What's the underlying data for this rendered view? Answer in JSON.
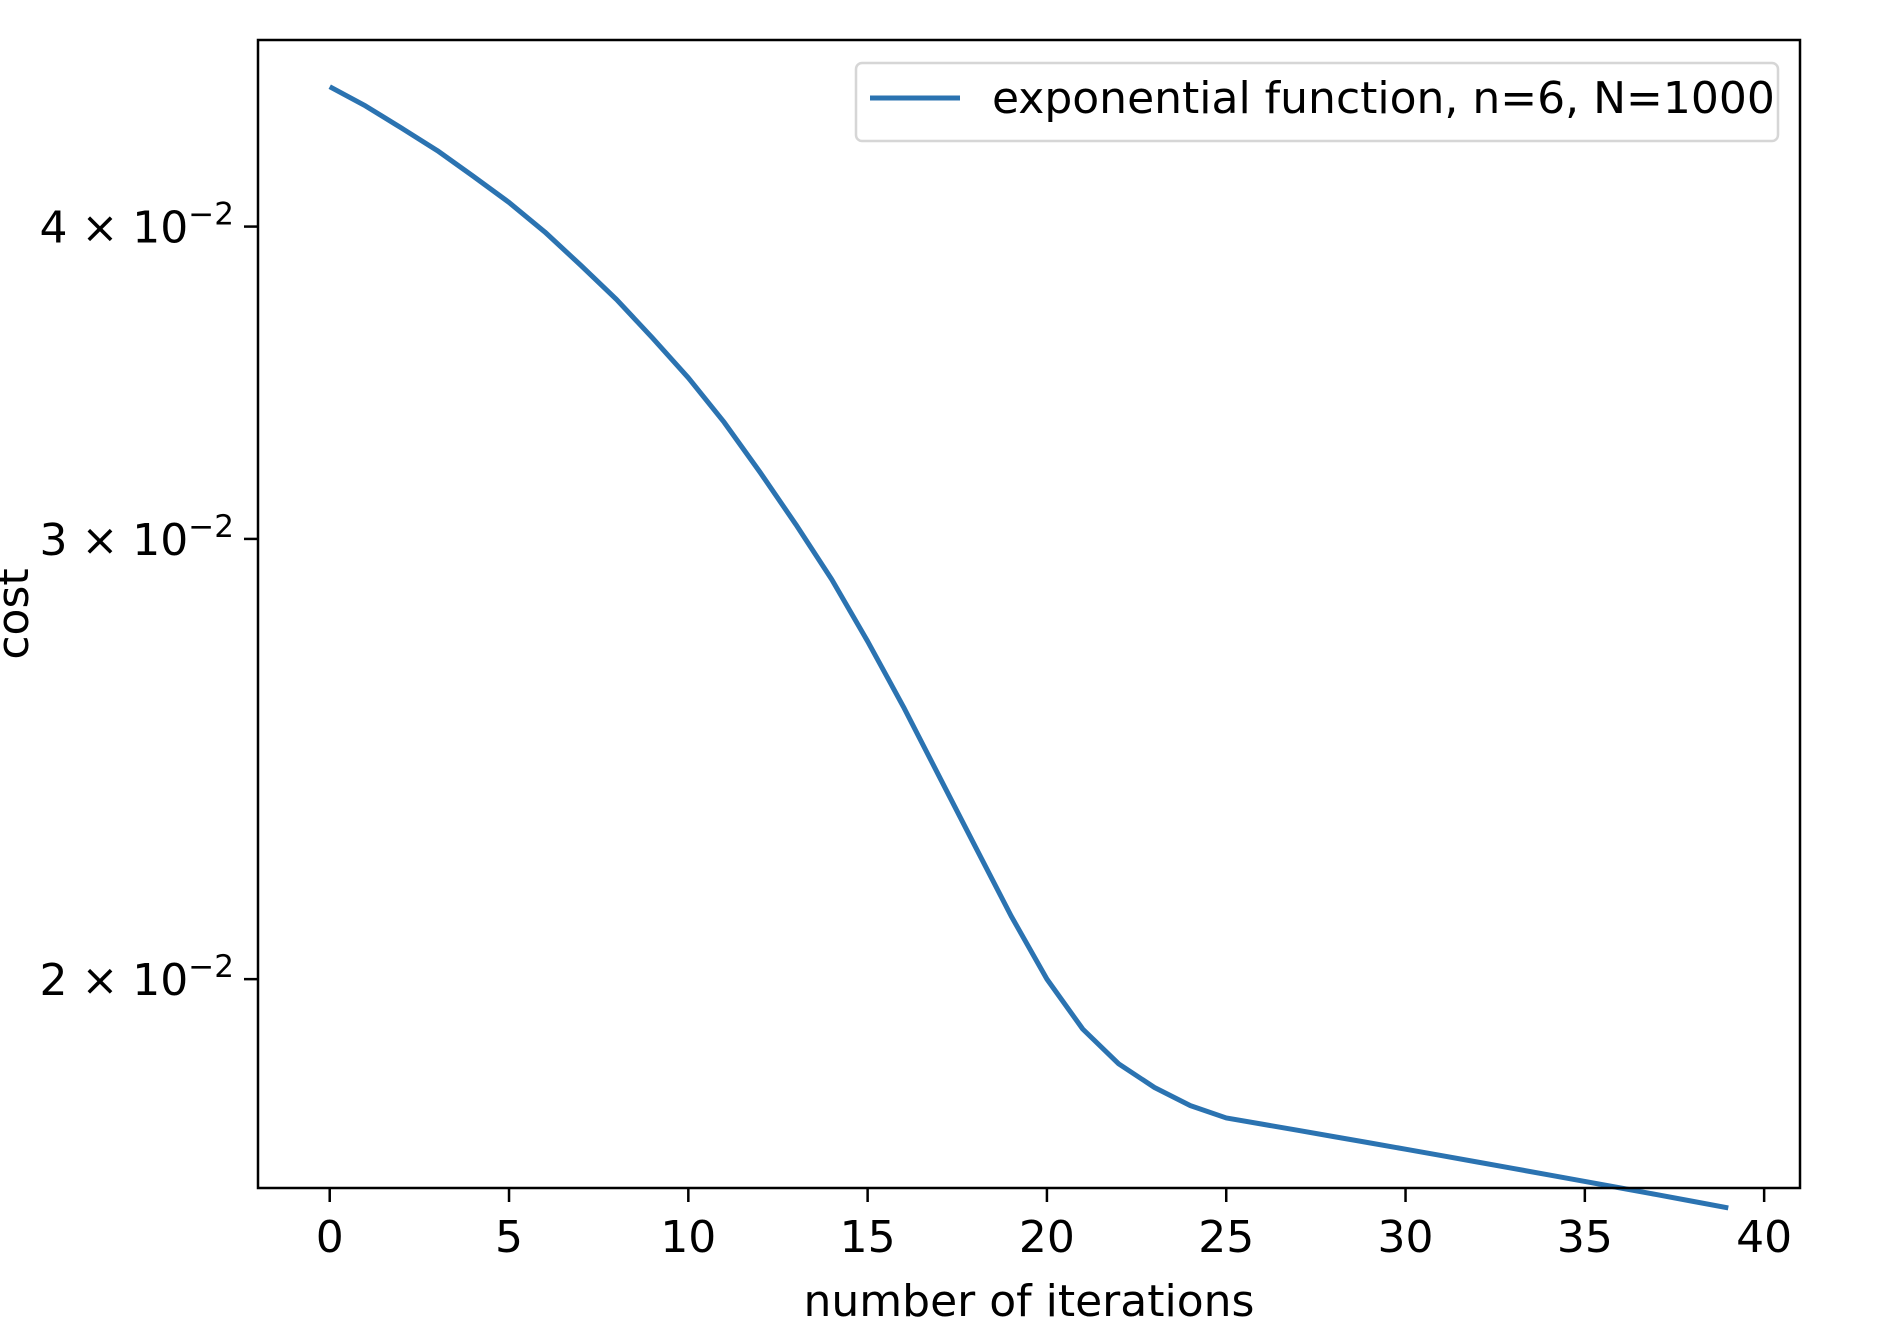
{
  "chart_data": {
    "type": "line",
    "title": "",
    "xlabel": "number of iterations",
    "ylabel": "cost",
    "xlim": [
      -2,
      41
    ],
    "ylim": [
      0.0165,
      0.0475
    ],
    "yscale": "log",
    "grid": false,
    "legend_position": "top-right",
    "x_ticks": [
      0,
      5,
      10,
      15,
      20,
      25,
      30,
      35,
      40
    ],
    "x_tick_labels": [
      "0",
      "5",
      "10",
      "15",
      "20",
      "25",
      "30",
      "35",
      "40"
    ],
    "y_ticks": [
      {
        "value": 0.04,
        "mantissa": "4",
        "exponent": "−2"
      },
      {
        "value": 0.03,
        "mantissa": "3",
        "exponent": "−2"
      },
      {
        "value": 0.02,
        "mantissa": "2",
        "exponent": "−2"
      }
    ],
    "y_tick_base": "× 10",
    "series": [
      {
        "name": "exponential function, n=6, N=1000",
        "color": "#2b73b1",
        "x": [
          0,
          1,
          2,
          3,
          4,
          5,
          6,
          7,
          8,
          9,
          10,
          11,
          12,
          13,
          14,
          15,
          16,
          17,
          18,
          19,
          20,
          21,
          22,
          23,
          24,
          25,
          26,
          27,
          28,
          29,
          30,
          31,
          32,
          33,
          34,
          35,
          36,
          37,
          38,
          39
        ],
        "y": [
          0.0455,
          0.0447,
          0.0438,
          0.0429,
          0.0419,
          0.0409,
          0.0398,
          0.0386,
          0.0374,
          0.0361,
          0.0348,
          0.0334,
          0.0319,
          0.0304,
          0.0289,
          0.0273,
          0.0257,
          0.0241,
          0.0226,
          0.0212,
          0.02,
          0.0191,
          0.0185,
          0.0181,
          0.0178,
          0.0176,
          0.0175,
          0.0174,
          0.0173,
          0.0172,
          0.0171,
          0.017,
          0.0169,
          0.0168,
          0.0167,
          0.0166,
          0.0165,
          0.0164,
          0.0163,
          0.0162
        ]
      }
    ]
  }
}
